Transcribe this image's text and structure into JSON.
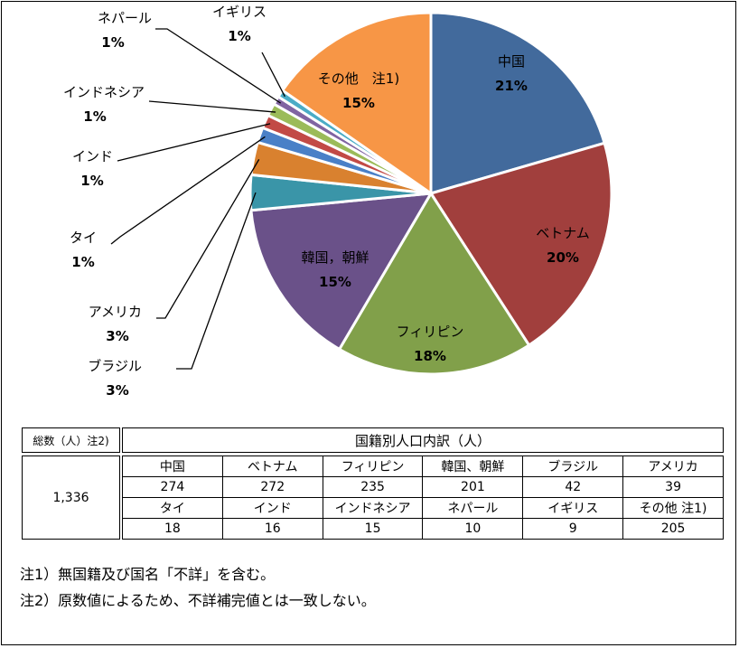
{
  "chart_data": {
    "type": "pie",
    "slices": [
      {
        "label": "中国",
        "pct_label": "21%",
        "value": 274,
        "color": "#426a9c"
      },
      {
        "label": "ベトナム",
        "pct_label": "20%",
        "value": 272,
        "color": "#a13f3d"
      },
      {
        "label": "フィリピン",
        "pct_label": "18%",
        "value": 235,
        "color": "#81a04a"
      },
      {
        "label": "韓国，朝鮮",
        "pct_label": "15%",
        "value": 201,
        "color": "#6a5189"
      },
      {
        "label": "ブラジル",
        "pct_label": "3%",
        "value": 42,
        "color": "#3a95a8"
      },
      {
        "label": "アメリカ",
        "pct_label": "3%",
        "value": 39,
        "color": "#d9812f"
      },
      {
        "label": "タイ",
        "pct_label": "1%",
        "value": 18,
        "color": "#4a80c7"
      },
      {
        "label": "インド",
        "pct_label": "1%",
        "value": 16,
        "color": "#c24a46"
      },
      {
        "label": "インドネシア",
        "pct_label": "1%",
        "value": 15,
        "color": "#9bbb59"
      },
      {
        "label": "ネパール",
        "pct_label": "1%",
        "value": 10,
        "color": "#8064a2"
      },
      {
        "label": "イギリス",
        "pct_label": "1%",
        "value": 9,
        "color": "#4bacc6"
      },
      {
        "label": "その他　注1)",
        "pct_label": "15%",
        "value": 205,
        "color": "#f79646"
      }
    ]
  },
  "table": {
    "total_label": "総数（人）注2)",
    "header": "国籍別人口内訳（人）",
    "total_value": "1,336",
    "row1": {
      "names": [
        "中国",
        "ベトナム",
        "フィリピン",
        "韓国、朝鮮",
        "ブラジル",
        "アメリカ"
      ],
      "values": [
        "274",
        "272",
        "235",
        "201",
        "42",
        "39"
      ]
    },
    "row2": {
      "names": [
        "タイ",
        "インド",
        "インドネシア",
        "ネパール",
        "イギリス",
        "その他 注1)"
      ],
      "values": [
        "18",
        "16",
        "15",
        "10",
        "9",
        "205"
      ]
    }
  },
  "notes": [
    "注1）無国籍及び国名「不詳」を含む。",
    "注2）原数値によるため、不詳補完値とは一致しない。"
  ]
}
